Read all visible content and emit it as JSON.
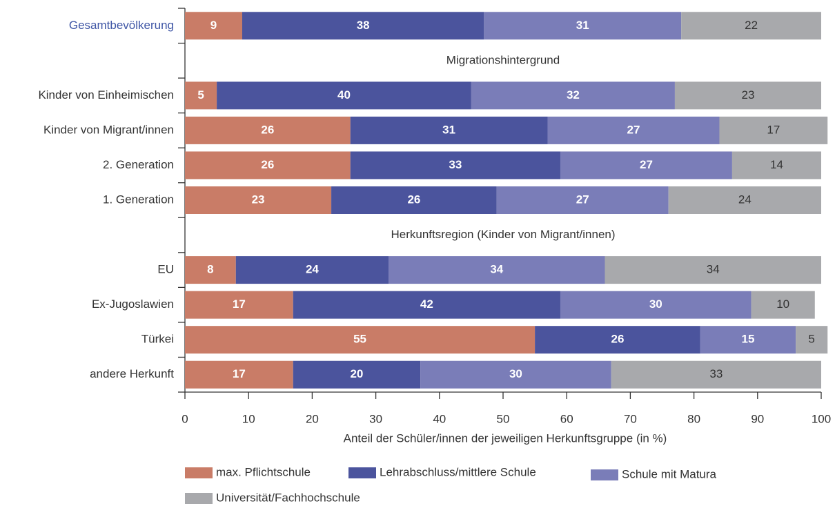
{
  "chart_data": {
    "type": "stacked-bar-horizontal",
    "categories": [
      "Gesamtbevölkerung",
      null,
      "Kinder von Einheimischen",
      "Kinder von Migrant/innen",
      "2. Generation",
      "1. Generation",
      null,
      "EU",
      "Ex-Jugoslawien",
      "Türkei",
      "andere Herkunft"
    ],
    "section_headers": [
      "Migrationshintergrund",
      "Herkunftsregion (Kinder von Migrant/innen)"
    ],
    "series": [
      {
        "name": "max. Pflichtschule",
        "color": "#c97c67",
        "values": [
          9,
          null,
          5,
          26,
          26,
          23,
          null,
          8,
          17,
          55,
          17
        ]
      },
      {
        "name": "Lehrabschluss/mittlere Schule",
        "color": "#4b549d",
        "values": [
          38,
          null,
          40,
          31,
          33,
          26,
          null,
          24,
          42,
          26,
          20
        ]
      },
      {
        "name": "Schule mit Matura",
        "color": "#7a7db8",
        "values": [
          31,
          null,
          32,
          27,
          27,
          27,
          null,
          34,
          30,
          15,
          30
        ]
      },
      {
        "name": "Universität/Fachhochschule",
        "color": "#a8a9ac",
        "values": [
          22,
          null,
          23,
          17,
          14,
          24,
          null,
          34,
          10,
          5,
          33
        ]
      }
    ],
    "xlabel": "Anteil der Schüler/innen der jeweiligen Herkunftsgruppe (in %)",
    "xlim": [
      0,
      100
    ],
    "xticks": [
      0,
      10,
      20,
      30,
      40,
      50,
      60,
      70,
      80,
      90,
      100
    ]
  }
}
